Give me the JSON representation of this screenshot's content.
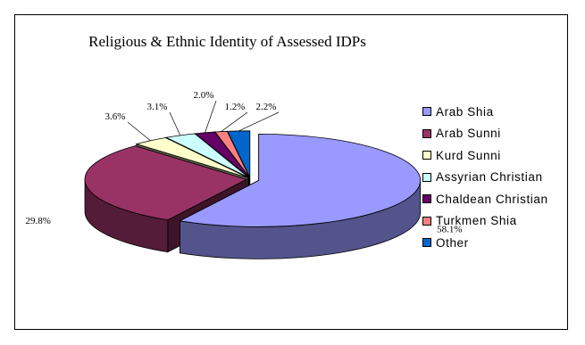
{
  "chart_data": {
    "type": "pie",
    "title": "Religious & Ethnic Identity of Assessed IDPs",
    "categories": [
      "Arab Shia",
      "Arab Sunni",
      "Kurd Sunni",
      "Assyrian Christian",
      "Chaldean Christian",
      "Turkmen Shia",
      "Other"
    ],
    "values": [
      58.1,
      29.8,
      3.6,
      3.1,
      2.0,
      1.2,
      2.2
    ],
    "value_labels": [
      "58.1%",
      "29.8%",
      "3.6%",
      "3.1%",
      "2.0%",
      "1.2%",
      "2.2%"
    ],
    "colors": [
      "#9999ff",
      "#993366",
      "#ffffcc",
      "#ccffff",
      "#660066",
      "#ff8080",
      "#0066cc"
    ],
    "exploded": "Arab Shia",
    "style": "3d",
    "legend_position": "right"
  }
}
